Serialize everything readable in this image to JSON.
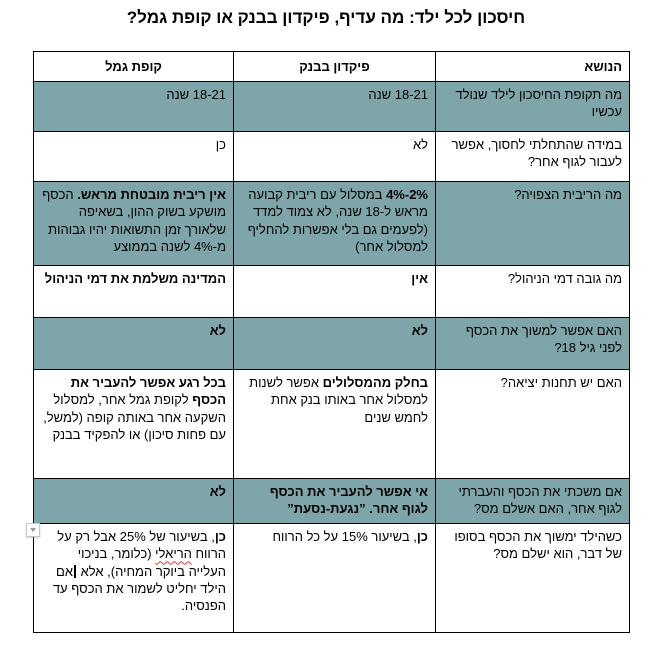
{
  "title": "חיסכון לכל ילד: מה עדיף, פיקדון בבנק או קופת גמל?",
  "colors": {
    "row_teal": "#7ea6aa",
    "border": "#000000",
    "spellcheck_red": "#e0392a"
  },
  "table": {
    "headers": {
      "topic": "הנושא",
      "bank": "פיקדון בבנק",
      "gemel": "קופת גמל"
    },
    "rows": [
      {
        "shaded": true,
        "topic": "מה תקופת החיסכון לילד שנולד עכשיו",
        "bank": [
          {
            "text": "18-21 שנה"
          }
        ],
        "gemel": [
          {
            "text": "18-21 שנה"
          }
        ]
      },
      {
        "shaded": false,
        "topic": "במידה שהתחלתי לחסוך, אפשר לעבור לגוף אחר?",
        "bank": [
          {
            "text": "לא"
          }
        ],
        "gemel": [
          {
            "text": "כן"
          }
        ]
      },
      {
        "shaded": true,
        "topic": "מה הריבית הצפויה?",
        "bank": [
          {
            "text": "2%-4%",
            "bold": true
          },
          {
            "text": " במסלול עם ריבית קבועה מראש ל-18 שנה, לא צמוד למדד (לפעמים גם בלי אפשרות להחליף למסלול אחר)"
          }
        ],
        "gemel": [
          {
            "text": "אין ריבית מובטחת מראש.",
            "bold": true
          },
          {
            "text": " הכסף מושקע בשוק ההון, בשאיפה שלאורך זמן התשואות יהיו גבוהות מ-4% לשנה בממוצע"
          }
        ]
      },
      {
        "shaded": false,
        "topic": "מה גובה דמי הניהול?",
        "bank": [
          {
            "text": "אין",
            "bold": true
          }
        ],
        "gemel": [
          {
            "text": "המדינה משלמת את דמי הניהול",
            "bold": true
          }
        ]
      },
      {
        "shaded": true,
        "topic": "האם אפשר למשוך את הכסף לפני גיל 18?",
        "bank": [
          {
            "text": "לא",
            "bold": true
          }
        ],
        "gemel": [
          {
            "text": "לא",
            "bold": true
          }
        ]
      },
      {
        "shaded": false,
        "topic": "האם יש תחנות יציאה?",
        "bank": [
          {
            "text": "בחלק מהמסלולים",
            "bold": true
          },
          {
            "text": " אפשר לשנות למסלול אחר באותו בנק אחת לחמש שנים"
          }
        ],
        "gemel": [
          {
            "text": "בכל רגע אפשר להעביר את הכסף",
            "bold": true
          },
          {
            "text": " לקופת גמל אחר, למסלול השקעה אחר באותה קופה (למשל, עם פחות סיכון) או להפקיד בבנק"
          }
        ]
      },
      {
        "shaded": true,
        "topic": "אם משכתי את הכסף והעברתי לגוף אחר, האם אשלם מס?",
        "bank": [
          {
            "text": "אי אפשר להעביר את הכסף לגוף אחר. ”נגעת-נסעת”",
            "bold": true
          }
        ],
        "gemel": [
          {
            "text": "לא",
            "bold": true
          }
        ]
      },
      {
        "shaded": false,
        "topic": "כשהילד ימשוך את הכסף בסופו של דבר, הוא ישלם מס?",
        "bank": [
          {
            "text": "כן",
            "bold": true
          },
          {
            "text": ", בשיעור 15% על כל הרווח"
          }
        ],
        "gemel": [
          {
            "text": "כן",
            "bold": true
          },
          {
            "text": ", בשיעור של 25% אבל רק על הרווח "
          },
          {
            "text": "הריאלי",
            "squiggle": true
          },
          {
            "text": " (כלומר, בניכוי העלייה ביוקר המחיה), אלא "
          },
          {
            "cursor": true
          },
          {
            "text": "אם הילד יחליט לשמור את הכסף עד הפנסיה."
          }
        ]
      }
    ]
  },
  "icons": {
    "spellcheck_dropdown": "chevron-down"
  }
}
